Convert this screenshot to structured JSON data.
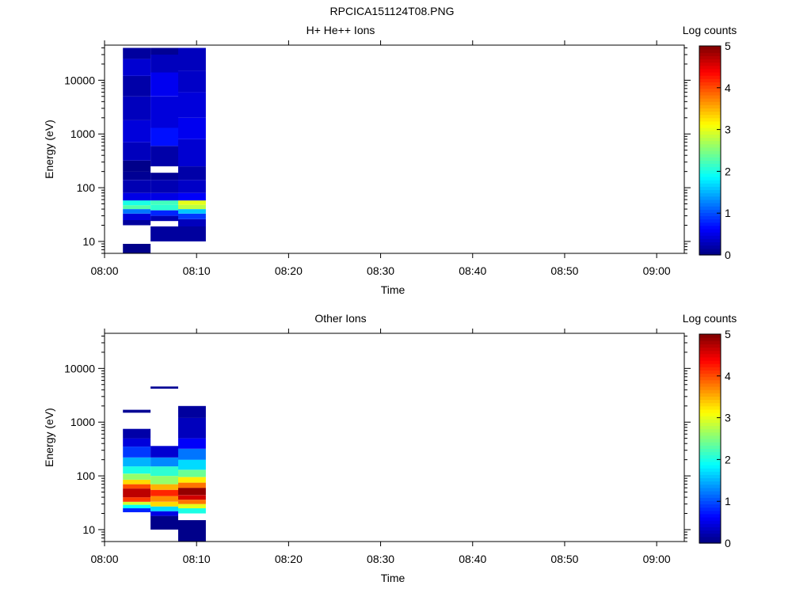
{
  "figure_title": "RPCICA151124T08.PNG",
  "chart_data": [
    {
      "type": "heatmap",
      "title": "H+ He++ Ions",
      "xlabel": "Time",
      "ylabel": "Energy (eV)",
      "x_ticks": [
        "08:00",
        "08:10",
        "08:20",
        "08:30",
        "08:40",
        "08:50",
        "09:00"
      ],
      "y_ticks": [
        "10",
        "100",
        "1000",
        "10000"
      ],
      "y_scale": "log",
      "y_range_eV": [
        6,
        45000
      ],
      "x_range": [
        "08:00",
        "09:03"
      ],
      "colorbar": {
        "label": "Log counts",
        "range": [
          0,
          5
        ],
        "ticks": [
          "0",
          "1",
          "2",
          "3",
          "4",
          "5"
        ],
        "colormap": "jet"
      },
      "columns": [
        {
          "time_start": "08:02",
          "time_end": "08:05",
          "bins": [
            {
              "e_lo": 6,
              "e_hi": 9,
              "v": 0.05
            },
            {
              "e_lo": 20,
              "e_hi": 25,
              "v": 0.15
            },
            {
              "e_lo": 25,
              "e_hi": 33,
              "v": 0.45
            },
            {
              "e_lo": 33,
              "e_hi": 40,
              "v": 1.2
            },
            {
              "e_lo": 40,
              "e_hi": 47,
              "v": 2.3
            },
            {
              "e_lo": 47,
              "e_hi": 58,
              "v": 2.0
            },
            {
              "e_lo": 58,
              "e_hi": 80,
              "v": 0.5
            },
            {
              "e_lo": 80,
              "e_hi": 140,
              "v": 0.25
            },
            {
              "e_lo": 140,
              "e_hi": 200,
              "v": 0.1
            },
            {
              "e_lo": 200,
              "e_hi": 320,
              "v": 0.05
            },
            {
              "e_lo": 320,
              "e_hi": 700,
              "v": 0.3
            },
            {
              "e_lo": 700,
              "e_hi": 1800,
              "v": 0.45
            },
            {
              "e_lo": 1800,
              "e_hi": 5000,
              "v": 0.3
            },
            {
              "e_lo": 5000,
              "e_hi": 12000,
              "v": 0.2
            },
            {
              "e_lo": 12000,
              "e_hi": 25000,
              "v": 0.4
            },
            {
              "e_lo": 25000,
              "e_hi": 40000,
              "v": 0.15
            }
          ]
        },
        {
          "time_start": "08:05",
          "time_end": "08:08",
          "bins": [
            {
              "e_lo": 10,
              "e_hi": 19,
              "v": 0.15
            },
            {
              "e_lo": 24,
              "e_hi": 30,
              "v": 0.25
            },
            {
              "e_lo": 30,
              "e_hi": 38,
              "v": 0.8
            },
            {
              "e_lo": 38,
              "e_hi": 48,
              "v": 2.1
            },
            {
              "e_lo": 48,
              "e_hi": 58,
              "v": 2.2
            },
            {
              "e_lo": 58,
              "e_hi": 80,
              "v": 0.5
            },
            {
              "e_lo": 80,
              "e_hi": 140,
              "v": 0.25
            },
            {
              "e_lo": 140,
              "e_hi": 190,
              "v": 0.1
            },
            {
              "e_lo": 250,
              "e_hi": 600,
              "v": 0.2
            },
            {
              "e_lo": 600,
              "e_hi": 1300,
              "v": 0.7
            },
            {
              "e_lo": 1300,
              "e_hi": 5000,
              "v": 0.45
            },
            {
              "e_lo": 5000,
              "e_hi": 14000,
              "v": 0.55
            },
            {
              "e_lo": 14000,
              "e_hi": 30000,
              "v": 0.3
            },
            {
              "e_lo": 30000,
              "e_hi": 40000,
              "v": 0.1
            }
          ]
        },
        {
          "time_start": "08:08",
          "time_end": "08:11",
          "bins": [
            {
              "e_lo": 10,
              "e_hi": 19,
              "v": 0.15
            },
            {
              "e_lo": 19,
              "e_hi": 26,
              "v": 0.3
            },
            {
              "e_lo": 26,
              "e_hi": 33,
              "v": 0.9
            },
            {
              "e_lo": 33,
              "e_hi": 40,
              "v": 1.6
            },
            {
              "e_lo": 40,
              "e_hi": 48,
              "v": 2.8
            },
            {
              "e_lo": 48,
              "e_hi": 58,
              "v": 3.0
            },
            {
              "e_lo": 58,
              "e_hi": 80,
              "v": 0.6
            },
            {
              "e_lo": 80,
              "e_hi": 140,
              "v": 0.35
            },
            {
              "e_lo": 140,
              "e_hi": 250,
              "v": 0.2
            },
            {
              "e_lo": 250,
              "e_hi": 800,
              "v": 0.4
            },
            {
              "e_lo": 800,
              "e_hi": 2000,
              "v": 0.55
            },
            {
              "e_lo": 2000,
              "e_hi": 6000,
              "v": 0.45
            },
            {
              "e_lo": 6000,
              "e_hi": 15000,
              "v": 0.35
            },
            {
              "e_lo": 15000,
              "e_hi": 40000,
              "v": 0.3
            }
          ]
        }
      ]
    },
    {
      "type": "heatmap",
      "title": "Other Ions",
      "xlabel": "Time",
      "ylabel": "Energy (eV)",
      "x_ticks": [
        "08:00",
        "08:10",
        "08:20",
        "08:30",
        "08:40",
        "08:50",
        "09:00"
      ],
      "y_ticks": [
        "10",
        "100",
        "1000",
        "10000"
      ],
      "y_scale": "log",
      "y_range_eV": [
        6,
        45000
      ],
      "x_range": [
        "08:00",
        "09:03"
      ],
      "colorbar": {
        "label": "Log counts",
        "range": [
          0,
          5
        ],
        "ticks": [
          "0",
          "1",
          "2",
          "3",
          "4",
          "5"
        ],
        "colormap": "jet"
      },
      "columns": [
        {
          "time_start": "08:02",
          "time_end": "08:05",
          "bins": [
            {
              "e_lo": 21,
              "e_hi": 25,
              "v": 0.8
            },
            {
              "e_lo": 25,
              "e_hi": 29,
              "v": 1.9
            },
            {
              "e_lo": 29,
              "e_hi": 33,
              "v": 2.9
            },
            {
              "e_lo": 33,
              "e_hi": 40,
              "v": 4.1
            },
            {
              "e_lo": 40,
              "e_hi": 58,
              "v": 4.7
            },
            {
              "e_lo": 58,
              "e_hi": 70,
              "v": 4.0
            },
            {
              "e_lo": 70,
              "e_hi": 85,
              "v": 3.3
            },
            {
              "e_lo": 85,
              "e_hi": 110,
              "v": 2.6
            },
            {
              "e_lo": 110,
              "e_hi": 150,
              "v": 2.0
            },
            {
              "e_lo": 150,
              "e_hi": 220,
              "v": 1.5
            },
            {
              "e_lo": 220,
              "e_hi": 350,
              "v": 0.9
            },
            {
              "e_lo": 350,
              "e_hi": 500,
              "v": 0.45
            },
            {
              "e_lo": 500,
              "e_hi": 750,
              "v": 0.2
            },
            {
              "e_lo": 1500,
              "e_hi": 1700,
              "v": 0.1
            }
          ]
        },
        {
          "time_start": "08:05",
          "time_end": "08:08",
          "bins": [
            {
              "e_lo": 10,
              "e_hi": 18,
              "v": 0.05
            },
            {
              "e_lo": 18,
              "e_hi": 22,
              "v": 0.5
            },
            {
              "e_lo": 22,
              "e_hi": 27,
              "v": 1.7
            },
            {
              "e_lo": 27,
              "e_hi": 33,
              "v": 3.3
            },
            {
              "e_lo": 33,
              "e_hi": 42,
              "v": 3.7
            },
            {
              "e_lo": 42,
              "e_hi": 55,
              "v": 4.2
            },
            {
              "e_lo": 55,
              "e_hi": 70,
              "v": 3.5
            },
            {
              "e_lo": 70,
              "e_hi": 100,
              "v": 2.6
            },
            {
              "e_lo": 100,
              "e_hi": 150,
              "v": 2.1
            },
            {
              "e_lo": 150,
              "e_hi": 220,
              "v": 1.3
            },
            {
              "e_lo": 220,
              "e_hi": 360,
              "v": 0.4
            },
            {
              "e_lo": 4200,
              "e_hi": 4600,
              "v": 0.1
            }
          ]
        },
        {
          "time_start": "08:08",
          "time_end": "08:11",
          "bins": [
            {
              "e_lo": 6,
              "e_hi": 15,
              "v": 0.05
            },
            {
              "e_lo": 20,
              "e_hi": 25,
              "v": 2.0
            },
            {
              "e_lo": 25,
              "e_hi": 30,
              "v": 3.0
            },
            {
              "e_lo": 30,
              "e_hi": 36,
              "v": 3.8
            },
            {
              "e_lo": 36,
              "e_hi": 44,
              "v": 4.6
            },
            {
              "e_lo": 44,
              "e_hi": 60,
              "v": 4.9
            },
            {
              "e_lo": 60,
              "e_hi": 75,
              "v": 3.8
            },
            {
              "e_lo": 75,
              "e_hi": 95,
              "v": 3.2
            },
            {
              "e_lo": 95,
              "e_hi": 130,
              "v": 2.4
            },
            {
              "e_lo": 130,
              "e_hi": 200,
              "v": 1.7
            },
            {
              "e_lo": 200,
              "e_hi": 320,
              "v": 1.2
            },
            {
              "e_lo": 320,
              "e_hi": 500,
              "v": 0.6
            },
            {
              "e_lo": 500,
              "e_hi": 1200,
              "v": 0.3
            },
            {
              "e_lo": 1200,
              "e_hi": 2000,
              "v": 0.15
            }
          ]
        }
      ]
    }
  ]
}
